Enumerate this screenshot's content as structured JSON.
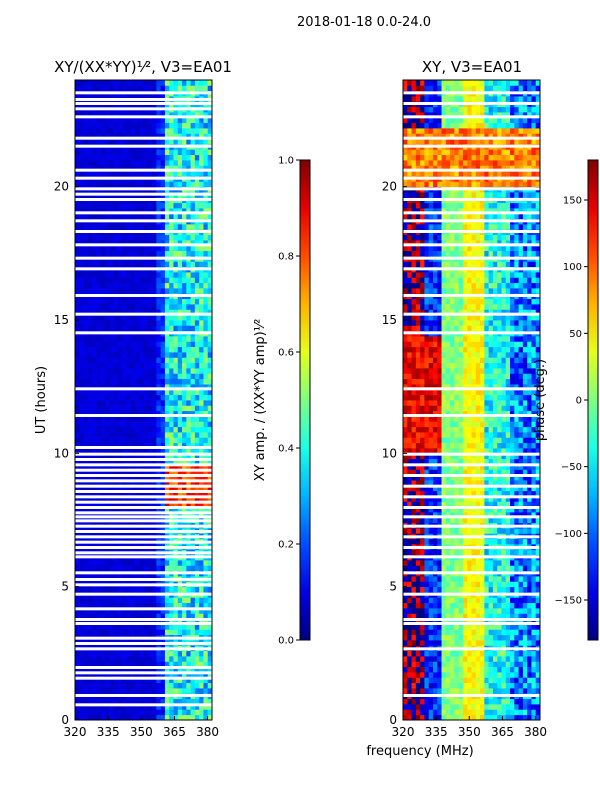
{
  "figure": {
    "suptitle": "2018-01-18 0.0-24.0",
    "shared_xlabel": "frequency (MHz)"
  },
  "chart_data": [
    {
      "type": "heatmap",
      "title": "XY/(XX*YY)¹⁄², V3=EA01",
      "xlabel": "",
      "ylabel": "UT (hours)",
      "xlim": [
        320,
        382
      ],
      "ylim": [
        0,
        24
      ],
      "xticks": [
        320,
        335,
        350,
        365,
        380
      ],
      "yticks": [
        0,
        5,
        10,
        15,
        20
      ],
      "colormap": "jet",
      "colorbar": {
        "label": "XY amp. / (XX*YY amp)¹⁄²",
        "range": [
          0.0,
          1.0
        ],
        "ticks": [
          "0.0",
          "0.2",
          "0.4",
          "0.6",
          "0.8",
          "1.0"
        ]
      },
      "description": "Normalized XY amplitude: mostly ~0.05 below 360 MHz; 360-382 MHz band ~0.2-0.5; 7.9-9.5 h high ~0.8-0.9 above 360 MHz",
      "flagged_rows_hours": [
        0.55,
        0.9,
        1.55,
        1.75,
        1.95,
        2.65,
        2.85,
        3.05,
        3.6,
        3.75,
        4.15,
        4.7,
        5.05,
        5.25,
        5.5,
        6.1,
        6.25,
        6.45,
        6.65,
        6.85,
        7.05,
        7.25,
        7.45,
        7.6,
        7.75,
        7.95,
        8.15,
        8.35,
        8.55,
        8.75,
        8.95,
        9.15,
        9.35,
        9.55,
        9.75,
        9.95,
        10.2,
        11.4,
        12.4,
        14.5,
        15.2,
        15.9,
        16.9,
        17.3,
        17.8,
        18.3,
        18.7,
        19.0,
        19.5,
        19.7,
        19.9,
        20.3,
        20.6,
        21.5,
        21.8,
        22.6,
        22.9,
        23.1,
        23.25,
        23.5
      ]
    },
    {
      "type": "heatmap",
      "title": "XY, V3=EA01",
      "xlabel": "frequency (MHz)",
      "ylabel": "",
      "xlim": [
        320,
        382
      ],
      "ylim": [
        0,
        24
      ],
      "xticks": [
        320,
        335,
        350,
        365,
        380
      ],
      "yticks": [
        0,
        5,
        10,
        15,
        20
      ],
      "colormap": "jet",
      "colorbar": {
        "label": "phase (deg.)",
        "range": [
          -180,
          180
        ],
        "ticks": [
          "−150",
          "−100",
          "−50",
          "0",
          "50",
          "100",
          "150"
        ]
      },
      "description": "XY phase in degrees, noisy with vertical bands: ~340-347 MHz near 0 deg, ~348-356 MHz near 30-60 deg; 20-22 h mostly 60-120 deg",
      "flagged_rows_hours": [
        0.9,
        2.65,
        3.6,
        3.75,
        4.7,
        5.5,
        6.1,
        6.45,
        6.85,
        7.25,
        7.6,
        7.95,
        8.35,
        8.75,
        9.15,
        9.55,
        9.95,
        11.4,
        12.4,
        14.5,
        15.2,
        15.9,
        16.9,
        17.3,
        17.8,
        18.3,
        18.7,
        19.0,
        19.5,
        19.9,
        20.3,
        20.6,
        21.5,
        21.8,
        22.6,
        23.1,
        23.5
      ]
    }
  ]
}
